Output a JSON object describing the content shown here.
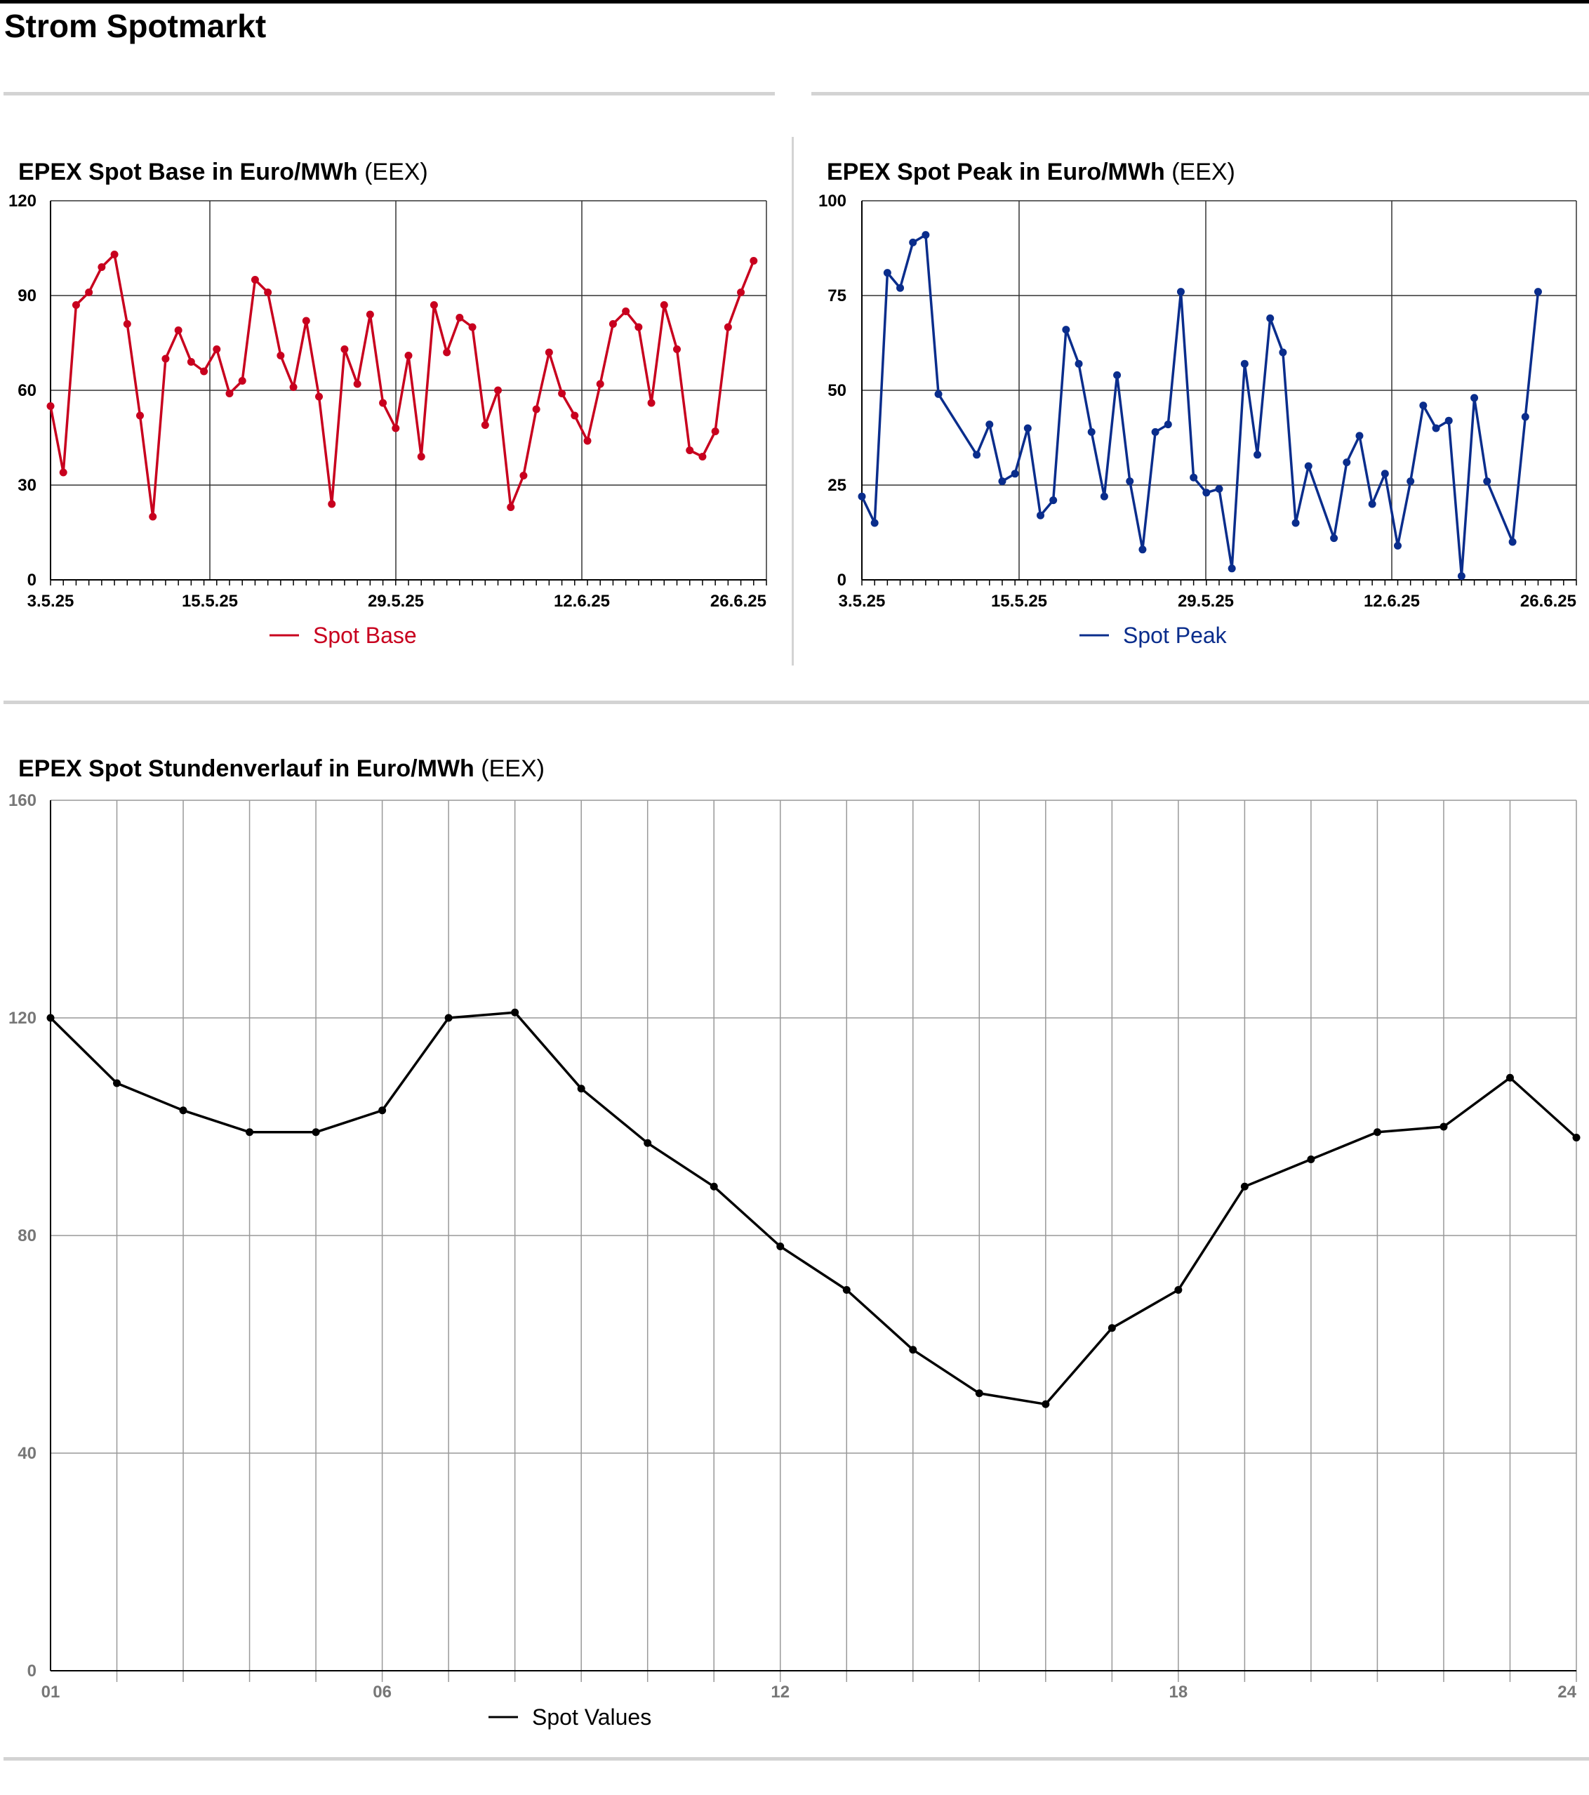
{
  "page": {
    "title": "Strom Spotmarkt"
  },
  "charts": {
    "base": {
      "title": "EPEX Spot Base in Euro/MWh",
      "source": "(EEX)",
      "legend": "Spot Base",
      "color": "#c8001e"
    },
    "peak": {
      "title": "EPEX Spot Peak in Euro/MWh",
      "source": "(EEX)",
      "legend": "Spot Peak",
      "color": "#0a2d8c"
    },
    "hourly": {
      "title": "EPEX Spot Stundenverlauf in Euro/MWh",
      "source": "(EEX)",
      "legend": "Spot Values",
      "color": "#000000"
    }
  },
  "chart_data": [
    {
      "type": "line",
      "title": "EPEX Spot Base in Euro/MWh (EEX)",
      "xlabel": "",
      "ylabel": "",
      "x_tick_labels": [
        "3.5.25",
        "15.5.25",
        "29.5.25",
        "12.6.25",
        "26.6.25"
      ],
      "y_ticks": [
        0,
        30,
        60,
        90,
        120
      ],
      "ylim": [
        0,
        120
      ],
      "grid": true,
      "legend_position": "bottom",
      "series": [
        {
          "name": "Spot Base",
          "x": [
            "3.5.25",
            "4.5.25",
            "5.5.25",
            "6.5.25",
            "7.5.25",
            "8.5.25",
            "9.5.25",
            "10.5.25",
            "11.5.25",
            "12.5.25",
            "13.5.25",
            "14.5.25",
            "15.5.25",
            "16.5.25",
            "17.5.25",
            "18.5.25",
            "19.5.25",
            "20.5.25",
            "21.5.25",
            "22.5.25",
            "23.5.25",
            "24.5.25",
            "25.5.25",
            "26.5.25",
            "27.5.25",
            "28.5.25",
            "29.5.25",
            "30.5.25",
            "31.5.25",
            "1.6.25",
            "2.6.25",
            "3.6.25",
            "4.6.25",
            "5.6.25",
            "6.6.25",
            "7.6.25",
            "8.6.25",
            "9.6.25",
            "10.6.25",
            "11.6.25",
            "12.6.25",
            "13.6.25",
            "14.6.25",
            "15.6.25",
            "16.6.25",
            "17.6.25",
            "18.6.25",
            "19.6.25",
            "20.6.25",
            "21.6.25",
            "22.6.25",
            "23.6.25",
            "24.6.25",
            "25.6.25",
            "26.6.25",
            "27.6.25"
          ],
          "values": [
            55,
            34,
            87,
            91,
            99,
            103,
            81,
            52,
            20,
            70,
            79,
            69,
            66,
            73,
            59,
            63,
            95,
            91,
            71,
            61,
            82,
            58,
            24,
            73,
            62,
            84,
            56,
            48,
            71,
            39,
            87,
            72,
            83,
            80,
            49,
            60,
            23,
            33,
            54,
            72,
            59,
            52,
            44,
            62,
            81,
            85,
            80,
            56,
            87,
            73,
            41,
            39,
            47,
            80,
            91,
            101
          ]
        }
      ]
    },
    {
      "type": "line",
      "title": "EPEX Spot Peak in Euro/MWh (EEX)",
      "xlabel": "",
      "ylabel": "",
      "x_tick_labels": [
        "3.5.25",
        "15.5.25",
        "29.5.25",
        "12.6.25",
        "26.6.25"
      ],
      "y_ticks": [
        0,
        25,
        50,
        75,
        100
      ],
      "ylim": [
        0,
        100
      ],
      "grid": true,
      "legend_position": "bottom",
      "series": [
        {
          "name": "Spot Peak",
          "x": [
            "3.5.25",
            "4.5.25",
            "5.5.25",
            "6.5.25",
            "7.5.25",
            "8.5.25",
            "9.5.25",
            "12.5.25",
            "13.5.25",
            "14.5.25",
            "15.5.25",
            "16.5.25",
            "17.5.25",
            "18.5.25",
            "19.5.25",
            "20.5.25",
            "21.5.25",
            "22.5.25",
            "23.5.25",
            "24.5.25",
            "25.5.25",
            "26.5.25",
            "27.5.25",
            "28.5.25",
            "29.5.25",
            "30.5.25",
            "31.5.25",
            "1.6.25",
            "2.6.25",
            "3.6.25",
            "4.6.25",
            "5.6.25",
            "6.6.25",
            "7.6.25",
            "9.6.25",
            "10.6.25",
            "11.6.25",
            "12.6.25",
            "13.6.25",
            "14.6.25",
            "15.6.25",
            "16.6.25",
            "17.6.25",
            "18.6.25",
            "19.6.25",
            "20.6.25",
            "21.6.25",
            "23.6.25",
            "24.6.25",
            "25.6.25"
          ],
          "values": [
            22,
            15,
            81,
            77,
            89,
            91,
            49,
            33,
            41,
            26,
            28,
            40,
            17,
            21,
            66,
            57,
            39,
            22,
            54,
            26,
            8,
            39,
            41,
            76,
            27,
            23,
            24,
            3,
            57,
            33,
            69,
            60,
            15,
            30,
            11,
            31,
            38,
            20,
            28,
            9,
            26,
            46,
            40,
            42,
            1,
            48,
            26,
            10,
            43,
            76
          ]
        }
      ]
    },
    {
      "type": "line",
      "title": "EPEX Spot Stundenverlauf in Euro/MWh (EEX)",
      "xlabel": "",
      "ylabel": "",
      "x_tick_labels": [
        "01",
        "06",
        "12",
        "18",
        "24"
      ],
      "y_ticks": [
        0,
        40,
        80,
        120,
        160
      ],
      "ylim": [
        0,
        160
      ],
      "grid": true,
      "legend_position": "bottom",
      "series": [
        {
          "name": "Spot Values",
          "x": [
            1,
            2,
            3,
            4,
            5,
            6,
            7,
            8,
            9,
            10,
            11,
            12,
            13,
            14,
            15,
            16,
            17,
            18,
            19,
            20,
            21,
            22,
            23,
            24
          ],
          "values": [
            120,
            108,
            103,
            99,
            99,
            103,
            120,
            121,
            107,
            97,
            89,
            78,
            70,
            59,
            51,
            49,
            63,
            70,
            89,
            94,
            99,
            100,
            109,
            98
          ]
        }
      ]
    }
  ]
}
